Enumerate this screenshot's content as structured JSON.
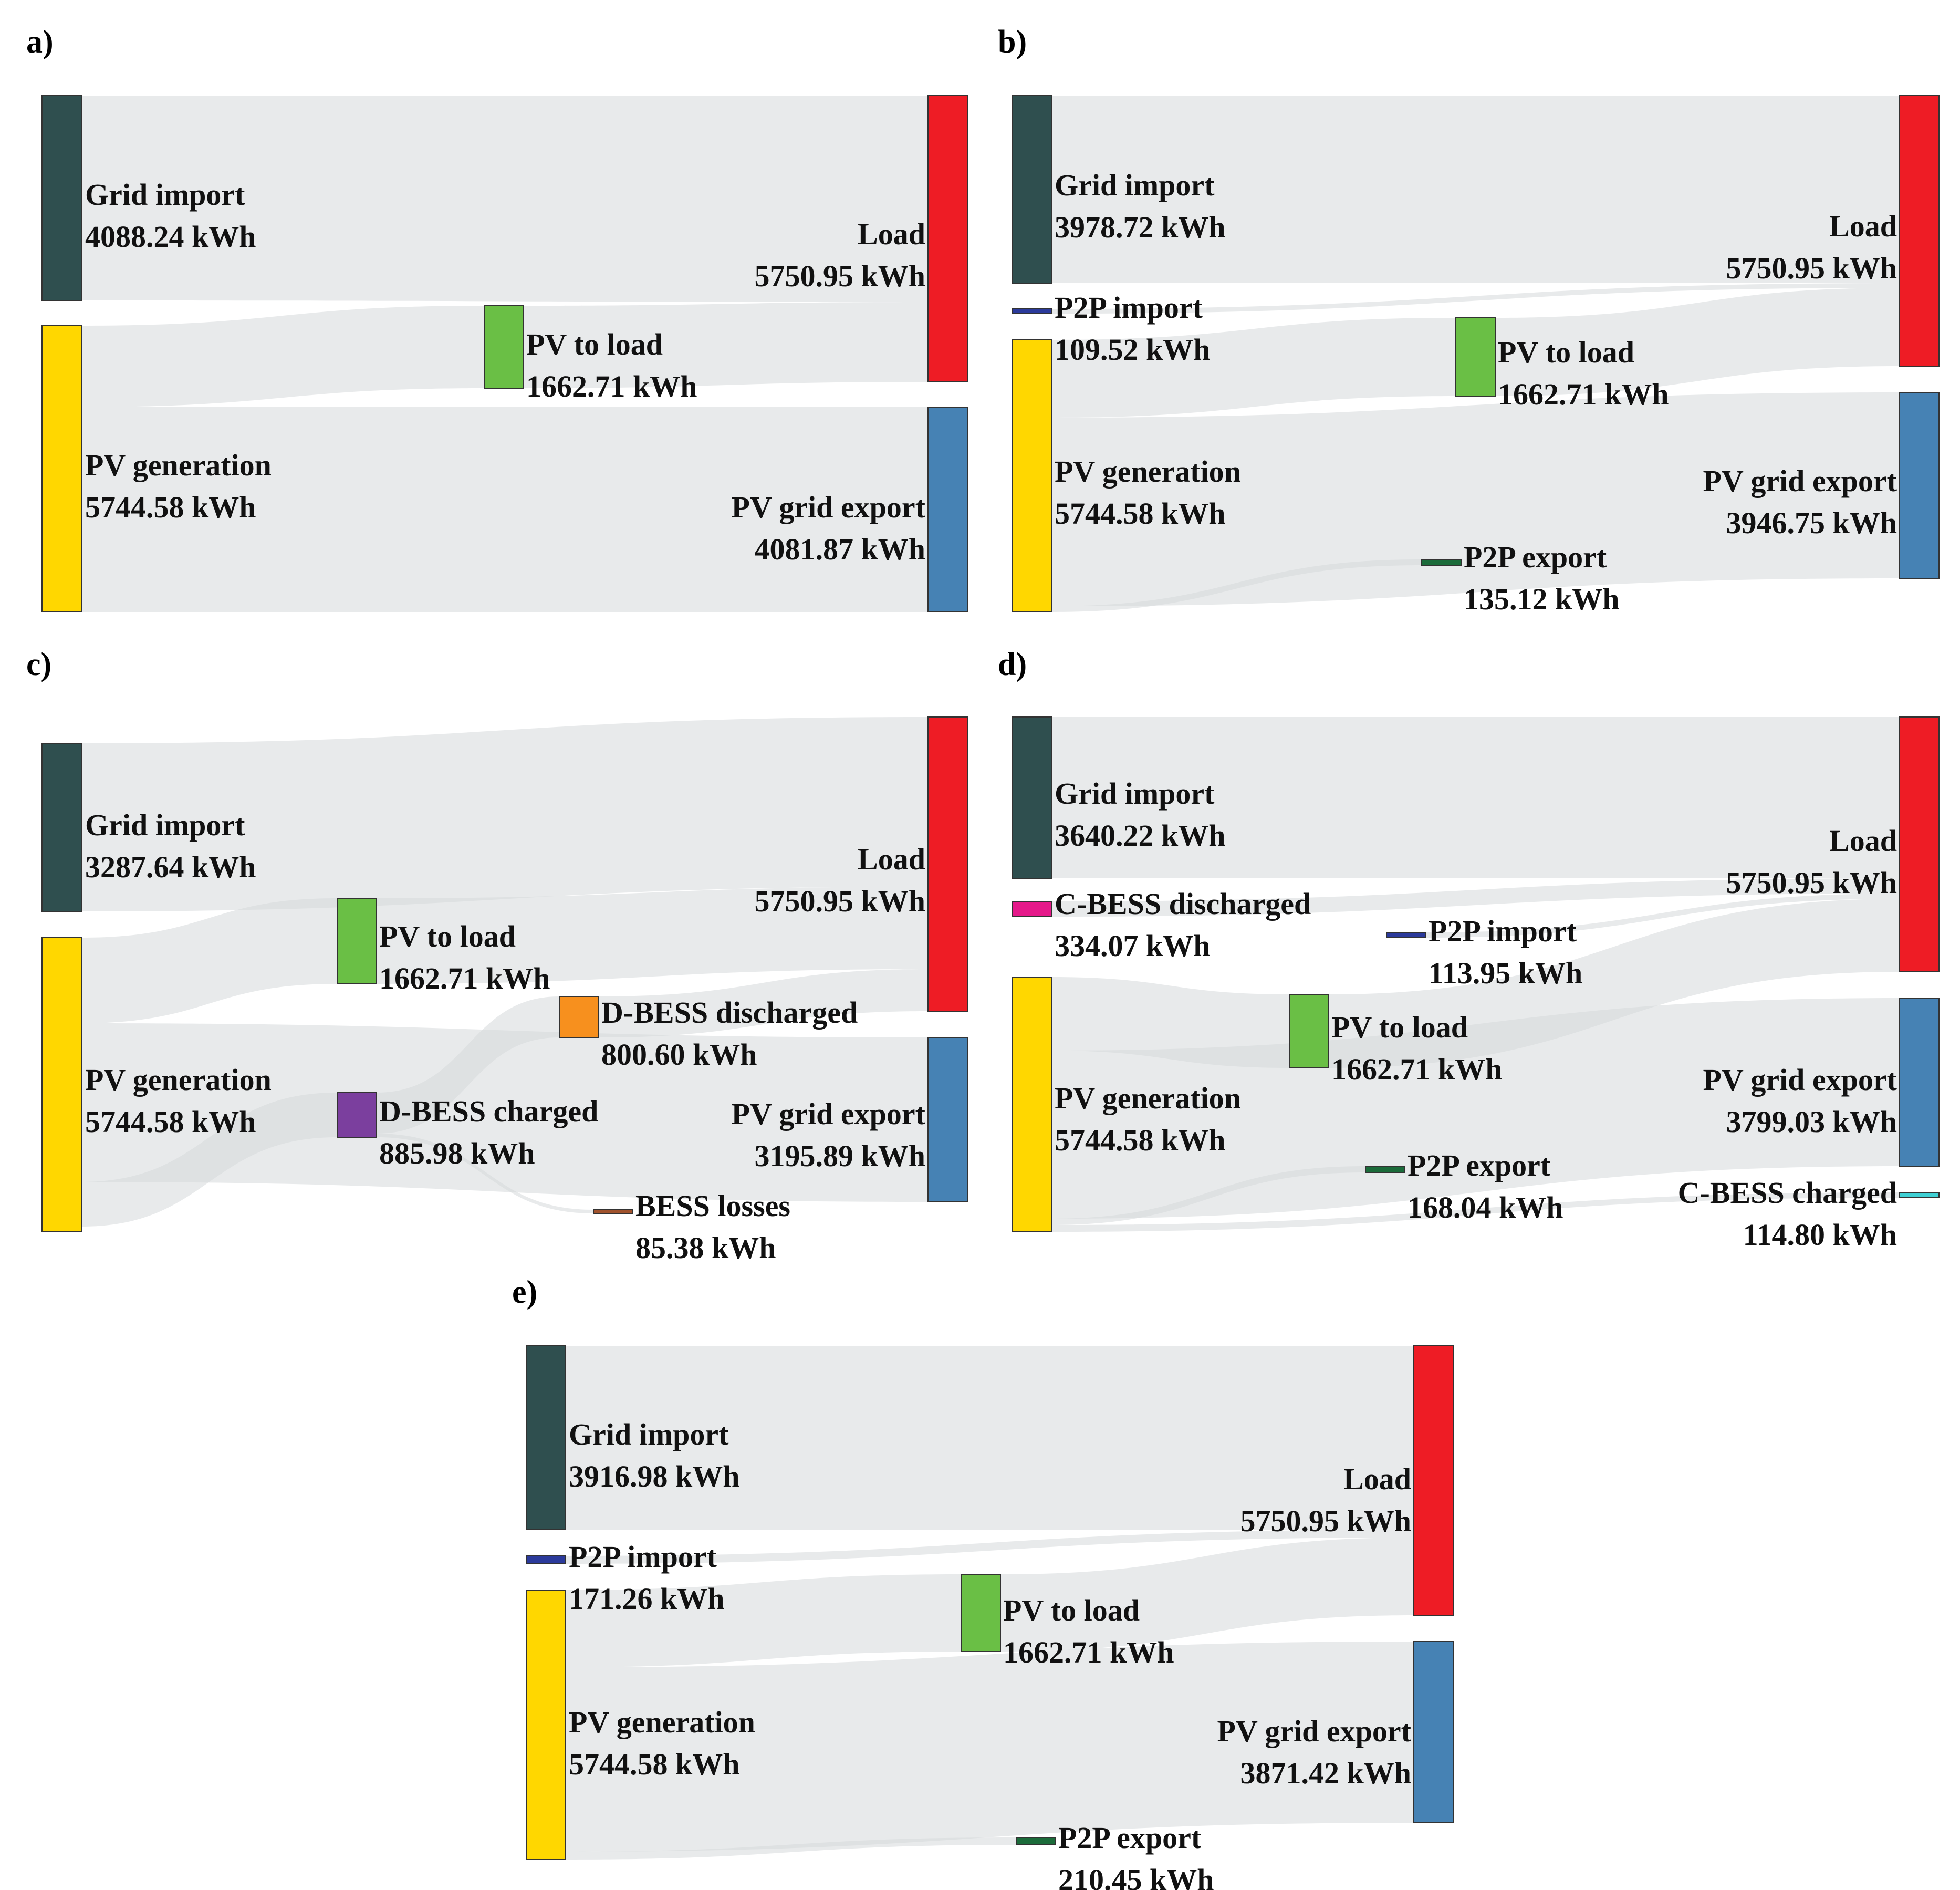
{
  "panels": [
    {
      "letter": "a)",
      "nodes": [
        {
          "id": "grid",
          "name": "Grid import",
          "value": "4088.24 kWh",
          "color": "#2f4f4f"
        },
        {
          "id": "pv",
          "name": "PV generation",
          "value": "5744.58 kWh",
          "color": "#ffd700"
        },
        {
          "id": "pvload",
          "name": "PV to load",
          "value": "1662.71 kWh",
          "color": "#6abf45"
        },
        {
          "id": "load",
          "name": "Load",
          "value": "5750.95 kWh",
          "color": "#ee1c25"
        },
        {
          "id": "export",
          "name": "PV grid export",
          "value": "4081.87 kWh",
          "color": "#4682b4"
        }
      ],
      "links": [
        [
          "grid",
          "load"
        ],
        [
          "pv",
          "pvload"
        ],
        [
          "pvload",
          "load"
        ],
        [
          "pv",
          "export"
        ]
      ]
    },
    {
      "letter": "b)",
      "nodes": [
        {
          "id": "grid",
          "name": "Grid import",
          "value": "3978.72 kWh",
          "color": "#2f4f4f"
        },
        {
          "id": "p2pimp",
          "name": "P2P import",
          "value": "109.52 kWh",
          "color": "#2b3a9b"
        },
        {
          "id": "pv",
          "name": "PV generation",
          "value": "5744.58 kWh",
          "color": "#ffd700"
        },
        {
          "id": "pvload",
          "name": "PV to load",
          "value": "1662.71 kWh",
          "color": "#6abf45"
        },
        {
          "id": "p2pexp",
          "name": "P2P export",
          "value": "135.12 kWh",
          "color": "#1b6b3a"
        },
        {
          "id": "load",
          "name": "Load",
          "value": "5750.95 kWh",
          "color": "#ee1c25"
        },
        {
          "id": "export",
          "name": "PV grid export",
          "value": "3946.75 kWh",
          "color": "#4682b4"
        }
      ],
      "links": [
        [
          "grid",
          "load"
        ],
        [
          "p2pimp",
          "load"
        ],
        [
          "pv",
          "pvload"
        ],
        [
          "pvload",
          "load"
        ],
        [
          "pv",
          "export"
        ],
        [
          "pv",
          "p2pexp"
        ]
      ]
    },
    {
      "letter": "c)",
      "nodes": [
        {
          "id": "grid",
          "name": "Grid import",
          "value": "3287.64 kWh",
          "color": "#2f4f4f"
        },
        {
          "id": "pv",
          "name": "PV generation",
          "value": "5744.58 kWh",
          "color": "#ffd700"
        },
        {
          "id": "pvload",
          "name": "PV to load",
          "value": "1662.71 kWh",
          "color": "#6abf45"
        },
        {
          "id": "dcharge",
          "name": "D-BESS charged",
          "value": "885.98 kWh",
          "color": "#7b3f9e"
        },
        {
          "id": "ddis",
          "name": "D-BESS discharged",
          "value": "800.60 kWh",
          "color": "#f7901e"
        },
        {
          "id": "loss",
          "name": "BESS losses",
          "value": "85.38 kWh",
          "color": "#a0522d"
        },
        {
          "id": "load",
          "name": "Load",
          "value": "5750.95 kWh",
          "color": "#ee1c25"
        },
        {
          "id": "export",
          "name": "PV grid export",
          "value": "3195.89 kWh",
          "color": "#4682b4"
        }
      ],
      "links": [
        [
          "grid",
          "load"
        ],
        [
          "pv",
          "pvload"
        ],
        [
          "pvload",
          "load"
        ],
        [
          "pv",
          "dcharge"
        ],
        [
          "dcharge",
          "ddis"
        ],
        [
          "dcharge",
          "loss"
        ],
        [
          "ddis",
          "load"
        ],
        [
          "pv",
          "export"
        ]
      ]
    },
    {
      "letter": "d)",
      "nodes": [
        {
          "id": "grid",
          "name": "Grid import",
          "value": "3640.22 kWh",
          "color": "#2f4f4f"
        },
        {
          "id": "cdis",
          "name": "C-BESS discharged",
          "value": "334.07 kWh",
          "color": "#e5198a"
        },
        {
          "id": "pv",
          "name": "PV generation",
          "value": "5744.58 kWh",
          "color": "#ffd700"
        },
        {
          "id": "p2pimp",
          "name": "P2P import",
          "value": "113.95 kWh",
          "color": "#2b3a9b"
        },
        {
          "id": "pvload",
          "name": "PV to load",
          "value": "1662.71 kWh",
          "color": "#6abf45"
        },
        {
          "id": "p2pexp",
          "name": "P2P export",
          "value": "168.04 kWh",
          "color": "#1b6b3a"
        },
        {
          "id": "load",
          "name": "Load",
          "value": "5750.95 kWh",
          "color": "#ee1c25"
        },
        {
          "id": "export",
          "name": "PV grid export",
          "value": "3799.03 kWh",
          "color": "#4682b4"
        },
        {
          "id": "ccharge",
          "name": "C-BESS charged",
          "value": "114.80 kWh",
          "color": "#3fd0d4"
        }
      ],
      "links": [
        [
          "grid",
          "load"
        ],
        [
          "cdis",
          "load"
        ],
        [
          "p2pimp",
          "load"
        ],
        [
          "pv",
          "pvload"
        ],
        [
          "pvload",
          "load"
        ],
        [
          "pv",
          "export"
        ],
        [
          "pv",
          "p2pexp"
        ],
        [
          "pv",
          "ccharge"
        ]
      ]
    },
    {
      "letter": "e)",
      "nodes": [
        {
          "id": "grid",
          "name": "Grid import",
          "value": "3916.98 kWh",
          "color": "#2f4f4f"
        },
        {
          "id": "p2pimp",
          "name": "P2P import",
          "value": "171.26 kWh",
          "color": "#2b3a9b"
        },
        {
          "id": "pv",
          "name": "PV generation",
          "value": "5744.58 kWh",
          "color": "#ffd700"
        },
        {
          "id": "pvload",
          "name": "PV to load",
          "value": "1662.71 kWh",
          "color": "#6abf45"
        },
        {
          "id": "p2pexp",
          "name": "P2P export",
          "value": "210.45 kWh",
          "color": "#1b6b3a"
        },
        {
          "id": "load",
          "name": "Load",
          "value": "5750.95 kWh",
          "color": "#ee1c25"
        },
        {
          "id": "export",
          "name": "PV grid export",
          "value": "3871.42 kWh",
          "color": "#4682b4"
        }
      ],
      "links": [
        [
          "grid",
          "load"
        ],
        [
          "p2pimp",
          "load"
        ],
        [
          "pv",
          "pvload"
        ],
        [
          "pvload",
          "load"
        ],
        [
          "pv",
          "export"
        ],
        [
          "pv",
          "p2pexp"
        ]
      ]
    }
  ]
}
